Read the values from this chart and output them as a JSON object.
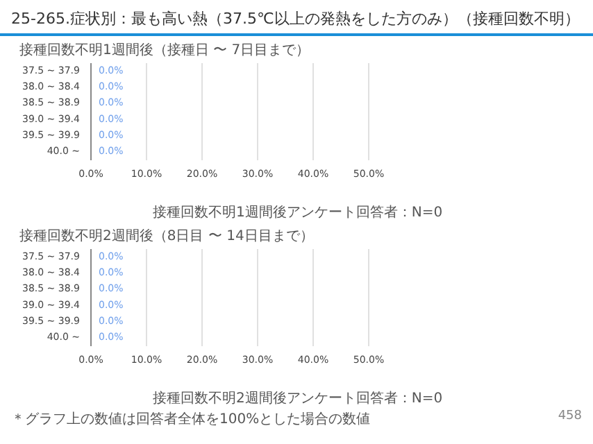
{
  "chart_data": [
    {
      "type": "bar",
      "orientation": "horizontal",
      "title": "25-265.症状別：最も高い熱（37.5℃以上の発熱をした方のみ）（接種回数不明）",
      "subtitle": "接種回数不明1週間後（接種日 〜 7日目まで）",
      "categories": [
        "37.5 ~ 37.9",
        "38.0 ~ 38.4",
        "38.5 ~ 38.9",
        "39.0 ~ 39.4",
        "39.5 ~ 39.9",
        "40.0 ~"
      ],
      "values": [
        0,
        0,
        0,
        0,
        0,
        0
      ],
      "value_labels": [
        "0.0%",
        "0.0%",
        "0.0%",
        "0.0%",
        "0.0%",
        "0.0%"
      ],
      "color": "#6d9eeb",
      "xlim": [
        0,
        50
      ],
      "xticks": [
        {
          "value": 0,
          "label": "0.0%"
        },
        {
          "value": 10,
          "label": "10.0%"
        },
        {
          "value": 20,
          "label": "20.0%"
        },
        {
          "value": 30,
          "label": "30.0%"
        },
        {
          "value": 40,
          "label": "40.0%"
        },
        {
          "value": 50,
          "label": "50.0%"
        }
      ],
      "grid": "x",
      "annotations": [
        "接種回数不明1週間後アンケート回答者：N=0"
      ]
    },
    {
      "type": "bar",
      "orientation": "horizontal",
      "title": "接種回数不明2週間後（8日目 〜 14日目まで）",
      "categories": [
        "37.5 ~ 37.9",
        "38.0 ~ 38.4",
        "38.5 ~ 38.9",
        "39.0 ~ 39.4",
        "39.5 ~ 39.9",
        "40.0 ~"
      ],
      "values": [
        0,
        0,
        0,
        0,
        0,
        0
      ],
      "value_labels": [
        "0.0%",
        "0.0%",
        "0.0%",
        "0.0%",
        "0.0%",
        "0.0%"
      ],
      "color": "#6d9eeb",
      "xlim": [
        0,
        50
      ],
      "xticks": [
        {
          "value": 0,
          "label": "0.0%"
        },
        {
          "value": 10,
          "label": "10.0%"
        },
        {
          "value": 20,
          "label": "20.0%"
        },
        {
          "value": 30,
          "label": "30.0%"
        },
        {
          "value": 40,
          "label": "40.0%"
        },
        {
          "value": 50,
          "label": "50.0%"
        }
      ],
      "grid": "x",
      "annotations": [
        "接種回数不明2週間後アンケート回答者：N=0",
        "＊グラフ上の数値は回答者全体を100%とした場合の数値",
        "458"
      ]
    }
  ]
}
